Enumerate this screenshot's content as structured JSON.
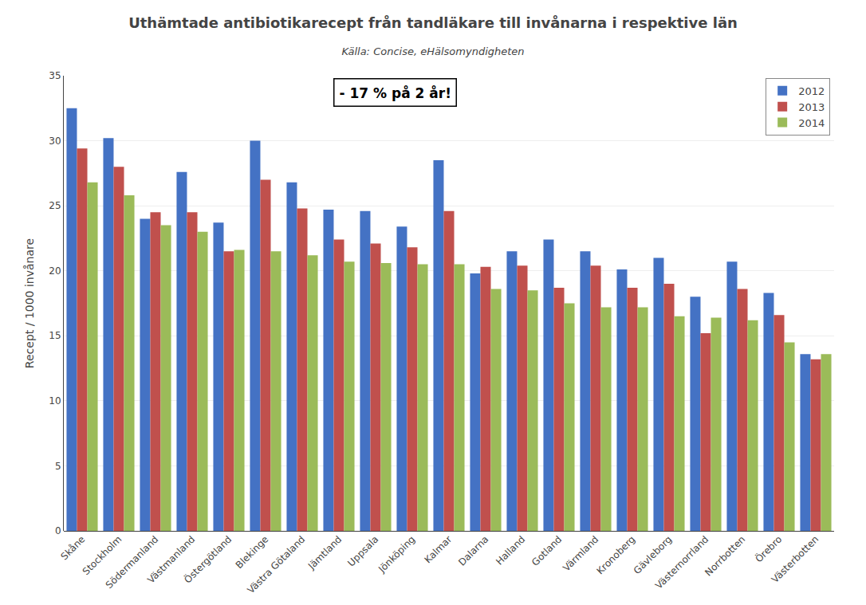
{
  "chart_data": {
    "type": "bar",
    "title": "Uthämtade antibiotikarecept från tandläkare till invånarna i respektive län",
    "subtitle": "Källa: Concise, eHälsomyndigheten",
    "ylabel": "Recept / 1000 invånare",
    "annotation": "- 17 % på 2 år!",
    "categories": [
      "Skåne",
      "Stockholm",
      "Södermanland",
      "Västmanland",
      "Östergötland",
      "Blekinge",
      "Västra Götaland",
      "Jämtland",
      "Uppsala",
      "Jönköping",
      "Kalmar",
      "Dalarna",
      "Halland",
      "Gotland",
      "Värmland",
      "Kronoberg",
      "Gävleborg",
      "Västernorrland",
      "Norrbotten",
      "Örebro",
      "Västerbotten"
    ],
    "series": [
      {
        "name": "2012",
        "color": "#4472C4",
        "values": [
          32.5,
          30.2,
          24.0,
          27.6,
          23.7,
          30.0,
          26.8,
          24.7,
          24.6,
          23.4,
          28.5,
          19.8,
          21.5,
          22.4,
          21.5,
          20.1,
          21.0,
          18.0,
          20.7,
          18.3,
          13.6
        ]
      },
      {
        "name": "2013",
        "color": "#C0504D",
        "values": [
          29.4,
          28.0,
          24.5,
          24.5,
          21.5,
          27.0,
          24.8,
          22.4,
          22.1,
          21.8,
          24.6,
          20.3,
          20.4,
          18.7,
          20.4,
          18.7,
          19.0,
          15.2,
          18.6,
          16.6,
          13.2
        ]
      },
      {
        "name": "2014",
        "color": "#9BBB59",
        "values": [
          26.8,
          25.8,
          23.5,
          23.0,
          21.6,
          21.5,
          21.2,
          20.7,
          20.6,
          20.5,
          20.5,
          18.6,
          18.5,
          17.5,
          17.2,
          17.2,
          16.5,
          16.4,
          16.2,
          14.5,
          13.6
        ]
      }
    ],
    "ylim": [
      0,
      35
    ],
    "yticks": [
      0,
      5,
      10,
      15,
      20,
      25,
      30,
      35
    ],
    "grid": true,
    "legend": "upper right"
  }
}
